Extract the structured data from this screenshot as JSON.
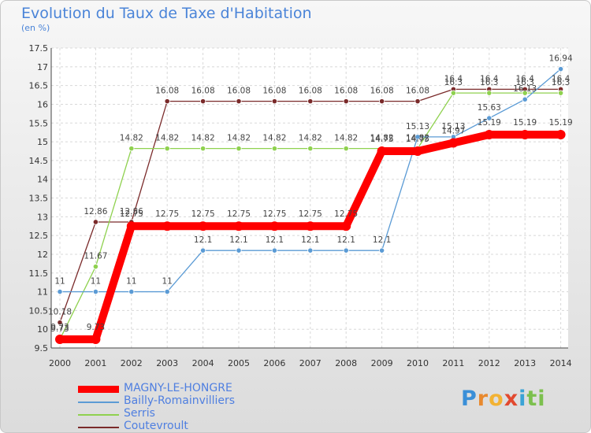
{
  "chart_data": {
    "type": "line",
    "title": "Evolution du Taux de Taxe d'Habitation",
    "subtitle": "(en %)",
    "xlabel": "",
    "ylabel": "(en %)",
    "categories": [
      "2000",
      "2001",
      "2002",
      "2003",
      "2004",
      "2005",
      "2006",
      "2007",
      "2008",
      "2009",
      "2010",
      "2011",
      "2012",
      "2013",
      "2014"
    ],
    "ylim": [
      9.5,
      17.5
    ],
    "yticks": [
      "9.5",
      "10",
      "10.5",
      "11",
      "11.5",
      "12",
      "12.5",
      "13",
      "13.5",
      "14",
      "14.5",
      "15",
      "15.5",
      "16",
      "16.5",
      "17",
      "17.5"
    ],
    "grid": true,
    "legend_position": "bottom-left",
    "series": [
      {
        "name": "MAGNY-LE-HONGRE",
        "color": "#ff0000",
        "values": [
          9.73,
          9.73,
          12.75,
          12.75,
          12.75,
          12.75,
          12.75,
          12.75,
          12.75,
          14.75,
          14.75,
          14.97,
          15.19,
          15.19,
          15.19
        ],
        "labels": [
          "9.73",
          "9.73",
          "12.75",
          "12.75",
          "12.75",
          "12.75",
          "12.75",
          "12.75",
          "12.75",
          "14.75",
          "14.75",
          "14.97",
          "15.19",
          "15.19",
          "15.19"
        ]
      },
      {
        "name": "Bailly-Romainvilliers",
        "color": "#5b9bd5",
        "values": [
          11,
          11,
          11,
          11,
          12.1,
          12.1,
          12.1,
          12.1,
          12.1,
          12.1,
          15.13,
          15.13,
          15.63,
          16.13,
          16.94
        ],
        "labels": [
          "11",
          "11",
          "11",
          "11",
          "12.1",
          "12.1",
          "12.1",
          "12.1",
          "12.1",
          "12.1",
          "15.13",
          "15.13",
          "15.63",
          "16.13",
          "16.94"
        ]
      },
      {
        "name": "Serris",
        "color": "#8fd14f",
        "values": [
          9.73,
          11.67,
          14.82,
          14.82,
          14.82,
          14.82,
          14.82,
          14.82,
          14.82,
          14.82,
          14.82,
          16.3,
          16.3,
          16.3,
          16.3
        ],
        "labels": [
          "9.73",
          "11.67",
          "14.82",
          "14.82",
          "14.82",
          "14.82",
          "14.82",
          "14.82",
          "14.82",
          "14.82",
          "14.82",
          "16.3",
          "16.3",
          "16.3",
          "16.3"
        ]
      },
      {
        "name": "Coutevroult",
        "color": "#7a2a2a",
        "values": [
          10.18,
          12.86,
          12.86,
          16.08,
          16.08,
          16.08,
          16.08,
          16.08,
          16.08,
          16.08,
          16.08,
          16.4,
          16.4,
          16.4,
          16.4
        ],
        "labels": [
          "10.18",
          "12.86",
          "12.86",
          "16.08",
          "16.08",
          "16.08",
          "16.08",
          "16.08",
          "16.08",
          "16.08",
          "16.08",
          "16.4",
          "16.4",
          "16.4",
          "16.4"
        ]
      }
    ]
  },
  "branding": {
    "logo_letters": [
      "P",
      "r",
      "o",
      "x",
      "i",
      "ti"
    ]
  }
}
